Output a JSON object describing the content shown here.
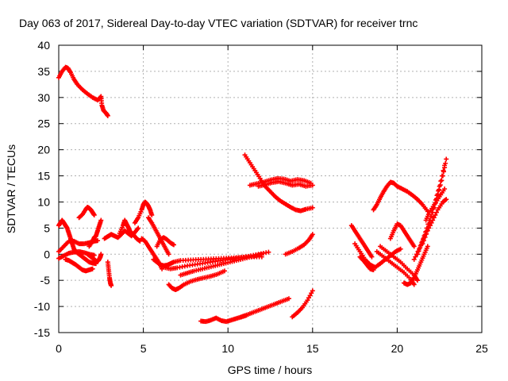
{
  "chart_data": {
    "type": "scatter",
    "title": "Day 063 of 2017, Sidereal Day-to-day VTEC variation (SDTVAR) for receiver trnc",
    "xlabel": "GPS time / hours",
    "ylabel": "SDTVAR / TECUs",
    "xlim": [
      0,
      25
    ],
    "ylim": [
      -15,
      40
    ],
    "xticks": [
      0,
      5,
      10,
      15,
      20,
      25
    ],
    "yticks": [
      -15,
      -10,
      -5,
      0,
      5,
      10,
      15,
      20,
      25,
      30,
      35,
      40
    ],
    "grid": true,
    "marker": "plus",
    "color": "#ff0000",
    "series": [
      {
        "x": [
          0,
          0.2,
          0.4,
          0.55,
          0.7,
          0.9,
          1.1,
          1.4,
          1.7,
          2.0,
          2.3,
          2.5,
          2.55,
          2.65,
          2.8,
          2.9
        ],
        "y": [
          33.8,
          35,
          35.8,
          35.6,
          34.8,
          33.5,
          32.5,
          31.5,
          30.7,
          30.0,
          29.5,
          30.2,
          28.5,
          27.5,
          27,
          26.5
        ]
      },
      {
        "x": [
          0,
          0.1,
          0.2,
          0.3,
          0.4,
          0.5,
          0.6,
          0.7,
          0.8,
          0.9,
          1.0,
          1.2,
          1.4,
          1.6,
          1.8,
          2.0,
          2.2
        ],
        "y": [
          5.5,
          6,
          6.5,
          6,
          5.5,
          5,
          4,
          3,
          2,
          1,
          0.5,
          0,
          -0.5,
          -1,
          -1.5,
          -1.7,
          -1.8
        ]
      },
      {
        "x": [
          0,
          0.3,
          0.6,
          0.9,
          1.2,
          1.5,
          1.8,
          2.1,
          2.3
        ],
        "y": [
          0.5,
          1.5,
          2.5,
          2.5,
          2,
          2,
          2.2,
          2.5,
          2.6
        ]
      },
      {
        "x": [
          0,
          0.3,
          0.6,
          0.9,
          1.2,
          1.5,
          1.8,
          2.1
        ],
        "y": [
          -0.8,
          -0.3,
          0.2,
          0.4,
          0.5,
          0.3,
          0,
          -0.2
        ]
      },
      {
        "x": [
          0.4,
          0.6,
          0.8,
          1.0,
          1.2,
          1.4,
          1.6,
          1.8,
          2.0
        ],
        "y": [
          -1,
          -1.2,
          -1.6,
          -2.0,
          -2.5,
          -3.0,
          -3.2,
          -3.0,
          -2.8
        ]
      },
      {
        "x": [
          1.2,
          1.4,
          1.6,
          1.7,
          1.8,
          1.9,
          2.0,
          2.1
        ],
        "y": [
          7,
          7.6,
          8.6,
          9.0,
          8.8,
          8.5,
          8,
          7.5
        ]
      },
      {
        "x": [
          1.7,
          1.9,
          2.1,
          2.25,
          2.35,
          2.45,
          2.5
        ],
        "y": [
          0,
          -0.5,
          -1,
          -1.4,
          -1.2,
          -0.6,
          0
        ]
      },
      {
        "x": [
          1.8,
          2.0,
          2.1,
          2.2,
          2.3,
          2.4,
          2.5
        ],
        "y": [
          1.5,
          2.5,
          3.2,
          3.5,
          4.5,
          5.5,
          6.5
        ]
      },
      {
        "x": [
          2.9,
          2.95,
          3.0,
          3.05,
          3.1
        ],
        "y": [
          -1.5,
          -3,
          -4.5,
          -5.5,
          -6
        ]
      },
      {
        "x": [
          2.7,
          2.9,
          3.1,
          3.3,
          3.5,
          3.7,
          3.9,
          4.1,
          4.3,
          4.5,
          4.7
        ],
        "y": [
          3,
          3.4,
          3.8,
          3.5,
          3.2,
          3.8,
          4.5,
          4.0,
          3.5,
          4.2,
          5.0
        ]
      },
      {
        "x": [
          3.6,
          3.8,
          3.9,
          4.0,
          4.1,
          4.2,
          4.4,
          4.6,
          4.8
        ],
        "y": [
          4,
          5.5,
          6.5,
          5.8,
          5.2,
          4.5,
          3.8,
          3.0,
          2.5
        ]
      },
      {
        "x": [
          4.5,
          4.7,
          4.9,
          5.0,
          5.1,
          5.2,
          5.3,
          5.4,
          5.5
        ],
        "y": [
          6,
          7,
          8.5,
          9.5,
          10,
          9.7,
          9.2,
          8.5,
          7.5
        ]
      },
      {
        "x": [
          4.9,
          5.1,
          5.3,
          5.5,
          5.7,
          5.9,
          6.1
        ],
        "y": [
          3,
          2.5,
          1.5,
          0.5,
          -0.5,
          -1.5,
          -2.8
        ]
      },
      {
        "x": [
          5.3,
          5.5,
          5.7,
          5.9,
          6.1,
          6.3,
          6.5
        ],
        "y": [
          7,
          6,
          4.8,
          3.6,
          2.4,
          1.2,
          0
        ]
      },
      {
        "x": [
          5.8,
          6.0,
          6.2,
          6.4,
          6.6,
          6.8
        ],
        "y": [
          1.5,
          2.8,
          3.2,
          2.8,
          2.2,
          1.8
        ]
      },
      {
        "x": [
          5.6,
          5.8,
          6.0,
          6.2,
          6.4,
          6.6,
          6.8,
          7.2,
          7.8,
          8.4,
          9.0,
          9.6,
          10.2,
          10.8,
          11.4,
          12.0
        ],
        "y": [
          -1,
          -1.5,
          -2,
          -2.2,
          -2.1,
          -1.8,
          -1.5,
          -1.2,
          -1.1,
          -1.0,
          -0.9,
          -0.8,
          -0.7,
          -0.6,
          -0.5,
          -0.5
        ]
      },
      {
        "x": [
          6.2,
          6.6,
          7.0,
          7.6,
          8.2,
          8.8,
          9.4,
          10.0,
          10.6,
          11.2,
          11.8,
          12.4
        ],
        "y": [
          -2.5,
          -2.8,
          -2.6,
          -2.2,
          -1.9,
          -1.6,
          -1.3,
          -1.0,
          -0.7,
          -0.4,
          0,
          0.4
        ]
      },
      {
        "x": [
          6.5,
          6.7,
          6.9,
          7.1,
          7.4,
          7.8,
          8.2,
          8.6,
          9.0,
          9.4,
          9.8
        ],
        "y": [
          -5.8,
          -6.5,
          -6.8,
          -6.5,
          -5.8,
          -5.2,
          -4.8,
          -4.5,
          -4.2,
          -3.8,
          -3.2
        ]
      },
      {
        "x": [
          7.2,
          7.6,
          8.0,
          8.5,
          9.0,
          9.5,
          10.0,
          10.5,
          11.0,
          11.5,
          12.0
        ],
        "y": [
          -4,
          -3.6,
          -3.2,
          -2.8,
          -2.4,
          -2.0,
          -1.6,
          -1.2,
          -0.8,
          -0.4,
          0
        ]
      },
      {
        "x": [
          8.4,
          8.7,
          9.0,
          9.3,
          9.6,
          9.9,
          10.2,
          10.5,
          10.8,
          11.1
        ],
        "y": [
          -12.8,
          -12.9,
          -12.6,
          -12.2,
          -12.7,
          -12.9,
          -12.6,
          -12.3,
          -12.0,
          -11.7
        ]
      },
      {
        "x": [
          10.8,
          11.2,
          11.6,
          12.0,
          12.4,
          12.8,
          13.2,
          13.6
        ],
        "y": [
          -12,
          -11.5,
          -11.0,
          -10.5,
          -10.0,
          -9.5,
          -9.0,
          -8.5
        ]
      },
      {
        "x": [
          13.8,
          14.1,
          14.4,
          14.7,
          15.0
        ],
        "y": [
          -12,
          -11.2,
          -10.2,
          -8.8,
          -7.0
        ]
      },
      {
        "x": [
          13.4,
          13.8,
          14.2,
          14.5,
          14.8,
          15.0
        ],
        "y": [
          0,
          0.5,
          1.2,
          1.8,
          2.8,
          3.8
        ]
      },
      {
        "x": [
          11.0,
          11.3,
          11.6,
          11.9,
          12.2,
          12.5,
          12.8,
          13.1,
          13.4,
          13.7,
          14.0,
          14.3,
          14.6,
          15.0
        ],
        "y": [
          19,
          17.5,
          16,
          14.5,
          13,
          12,
          11,
          10.2,
          9.6,
          9.0,
          8.5,
          8.3,
          8.6,
          8.9
        ]
      },
      {
        "x": [
          11.3,
          11.7,
          12.1,
          12.5,
          12.9,
          13.3,
          13.7,
          14.1,
          14.5,
          14.9
        ],
        "y": [
          13.2,
          13.5,
          13.8,
          14.2,
          14.5,
          14.4,
          14.0,
          14.3,
          14.1,
          13.6
        ]
      },
      {
        "x": [
          11.8,
          12.2,
          12.6,
          13.0,
          13.4,
          13.8,
          14.2,
          14.6,
          15.0
        ],
        "y": [
          13,
          13.3,
          13.7,
          13.9,
          13.6,
          13.2,
          13.4,
          13.0,
          13.2
        ]
      },
      {
        "x": [
          17.3,
          17.5,
          17.7,
          17.9,
          18.1,
          18.3,
          18.5
        ],
        "y": [
          5.5,
          4.5,
          3.5,
          2.5,
          1.5,
          0.5,
          -0.5
        ]
      },
      {
        "x": [
          17.5,
          17.8,
          18.1,
          18.4,
          18.7,
          19.0,
          19.3,
          19.6,
          19.9,
          20.2
        ],
        "y": [
          2,
          0.5,
          -1,
          -2.0,
          -2.5,
          -1.8,
          -1.0,
          -0.3,
          0.5,
          1.0
        ]
      },
      {
        "x": [
          17.8,
          18.0,
          18.2,
          18.4,
          18.6
        ],
        "y": [
          -0.5,
          -1.2,
          -2.0,
          -2.8,
          -3.0
        ]
      },
      {
        "x": [
          18.6,
          18.8,
          19.0,
          19.2,
          19.4,
          19.6,
          19.8,
          20.0,
          20.3,
          20.6,
          20.9,
          21.2,
          21.5,
          21.8
        ],
        "y": [
          8.5,
          9.5,
          10.8,
          12.0,
          13.0,
          13.8,
          13.6,
          13.0,
          12.5,
          12.0,
          11.3,
          10.5,
          9.5,
          8.2
        ]
      },
      {
        "x": [
          18.8,
          19.2,
          19.6,
          20.0,
          20.4,
          20.8,
          21.0
        ],
        "y": [
          0.5,
          -0.5,
          -1.5,
          -2.5,
          -3.5,
          -4.8,
          -5.8
        ]
      },
      {
        "x": [
          19.0,
          19.4,
          19.8,
          20.2,
          20.6,
          21.0,
          21.2
        ],
        "y": [
          1.5,
          0.5,
          -0.5,
          -1.5,
          -2.8,
          -4.0,
          -5.0
        ]
      },
      {
        "x": [
          19.6,
          19.8,
          20.0,
          20.2,
          20.4,
          20.6,
          20.8,
          21.0
        ],
        "y": [
          3.0,
          4.5,
          5.8,
          5.5,
          4.5,
          3.5,
          2.5,
          1.5
        ]
      },
      {
        "x": [
          20.4,
          20.6,
          20.8,
          21.0,
          21.2,
          21.4,
          21.6,
          21.8
        ],
        "y": [
          -5.5,
          -5.8,
          -5.5,
          -4.5,
          -3.0,
          -1.5,
          0,
          1.5
        ]
      },
      {
        "x": [
          21.0,
          21.3,
          21.6,
          21.9,
          22.2,
          22.5,
          22.8
        ],
        "y": [
          -1,
          1.0,
          3.5,
          6.5,
          9.5,
          13.0,
          17.0
        ]
      },
      {
        "x": [
          21.2,
          21.5,
          21.8,
          22.1,
          22.4,
          22.7,
          22.9
        ],
        "y": [
          0,
          2.5,
          5.0,
          8.0,
          11.5,
          15.0,
          18.2
        ]
      },
      {
        "x": [
          21.5,
          21.8,
          22.1,
          22.4,
          22.7,
          22.9
        ],
        "y": [
          2.0,
          4.5,
          6.5,
          8.5,
          10.0,
          10.5
        ]
      },
      {
        "x": [
          21.7,
          21.9,
          22.2,
          22.5,
          22.8
        ],
        "y": [
          6.5,
          8.0,
          9.5,
          11.0,
          12.5
        ]
      }
    ]
  }
}
